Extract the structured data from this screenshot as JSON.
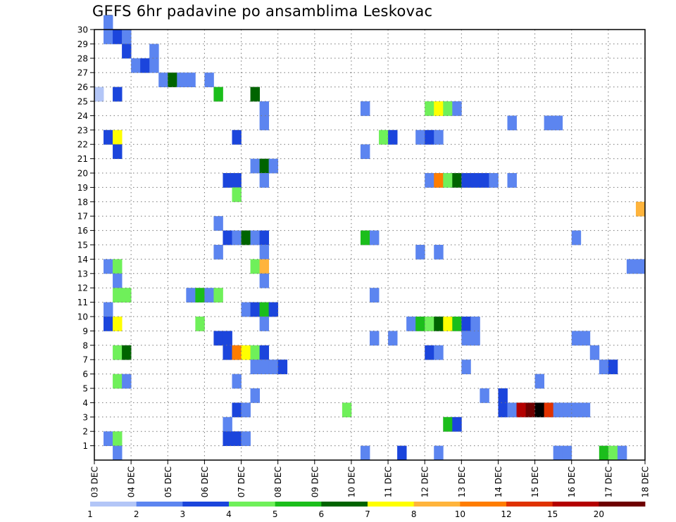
{
  "chart_data": {
    "type": "heatmap",
    "title": "GEFS 6hr padavine po ansamblima Leskovac",
    "x": {
      "tick_labels": [
        "03 DEC",
        "04 DEC",
        "05 DEC",
        "06 DEC",
        "07 DEC",
        "08 DEC",
        "09 DEC",
        "10 DEC",
        "11 DEC",
        "12 DEC",
        "13 DEC",
        "14 DEC",
        "15 DEC",
        "16 DEC",
        "17 DEC",
        "18 DEC"
      ],
      "steps_per_day": 4,
      "range_steps": [
        0,
        60
      ]
    },
    "y": {
      "tick_labels": [
        "1",
        "2",
        "3",
        "4",
        "5",
        "6",
        "7",
        "8",
        "9",
        "10",
        "11",
        "12",
        "13",
        "14",
        "15",
        "16",
        "17",
        "18",
        "19",
        "20",
        "21",
        "22",
        "23",
        "24",
        "25",
        "26",
        "27",
        "28",
        "29",
        "30"
      ],
      "range": [
        0,
        30
      ]
    },
    "grid": true,
    "legend": {
      "placement": "bottom",
      "levels": [
        1,
        2,
        3,
        4,
        5,
        6,
        7,
        8,
        10,
        12,
        15,
        20
      ],
      "colors": [
        "#b3c6f7",
        "#5c85f0",
        "#1b45dc",
        "#6ff05a",
        "#1bbe1b",
        "#006400",
        "#ffff00",
        "#ffb43c",
        "#ff7d00",
        "#e03200",
        "#b40000",
        "#6e0000"
      ]
    },
    "cells": [
      [
        1,
        29,
        1
      ],
      [
        1,
        30,
        1
      ],
      [
        2,
        29,
        2
      ],
      [
        3,
        29,
        1
      ],
      [
        3,
        28,
        2
      ],
      [
        4,
        27,
        1
      ],
      [
        5,
        27,
        2
      ],
      [
        6,
        27,
        1
      ],
      [
        6,
        28,
        1
      ],
      [
        7,
        26,
        1
      ],
      [
        8,
        26,
        5
      ],
      [
        9,
        26,
        1
      ],
      [
        10,
        26,
        1
      ],
      [
        12,
        26,
        1
      ],
      [
        0,
        25,
        0
      ],
      [
        2,
        25,
        2
      ],
      [
        13,
        25,
        4
      ],
      [
        17,
        25,
        5
      ],
      [
        18,
        24,
        1
      ],
      [
        29,
        24,
        1
      ],
      [
        36,
        24,
        3
      ],
      [
        37,
        24,
        6
      ],
      [
        38,
        24,
        3
      ],
      [
        39,
        24,
        1
      ],
      [
        18,
        23,
        1
      ],
      [
        45,
        23,
        1
      ],
      [
        49,
        23,
        1
      ],
      [
        50,
        23,
        1
      ],
      [
        1,
        22,
        2
      ],
      [
        2,
        22,
        6
      ],
      [
        15,
        22,
        2
      ],
      [
        31,
        22,
        3
      ],
      [
        32,
        22,
        2
      ],
      [
        35,
        22,
        1
      ],
      [
        36,
        22,
        2
      ],
      [
        37,
        22,
        1
      ],
      [
        2,
        21,
        2
      ],
      [
        29,
        21,
        1
      ],
      [
        17,
        20,
        1
      ],
      [
        18,
        20,
        5
      ],
      [
        19,
        20,
        1
      ],
      [
        14,
        19,
        2
      ],
      [
        15,
        19,
        2
      ],
      [
        18,
        19,
        1
      ],
      [
        36,
        19,
        1
      ],
      [
        37,
        19,
        8
      ],
      [
        38,
        19,
        3
      ],
      [
        39,
        19,
        5
      ],
      [
        40,
        19,
        2
      ],
      [
        41,
        19,
        2
      ],
      [
        42,
        19,
        2
      ],
      [
        43,
        19,
        1
      ],
      [
        45,
        19,
        1
      ],
      [
        15,
        18,
        3
      ],
      [
        59,
        17,
        7
      ],
      [
        13,
        16,
        1
      ],
      [
        14,
        15,
        2
      ],
      [
        15,
        15,
        1
      ],
      [
        16,
        15,
        5
      ],
      [
        17,
        15,
        1
      ],
      [
        18,
        15,
        2
      ],
      [
        29,
        15,
        4
      ],
      [
        30,
        15,
        1
      ],
      [
        52,
        15,
        1
      ],
      [
        13,
        14,
        1
      ],
      [
        18,
        14,
        1
      ],
      [
        35,
        14,
        1
      ],
      [
        37,
        14,
        1
      ],
      [
        1,
        13,
        1
      ],
      [
        2,
        13,
        3
      ],
      [
        17,
        13,
        3
      ],
      [
        18,
        13,
        7
      ],
      [
        58,
        13,
        1
      ],
      [
        59,
        13,
        1
      ],
      [
        2,
        12,
        1
      ],
      [
        18,
        12,
        1
      ],
      [
        2,
        11,
        3
      ],
      [
        3,
        11,
        3
      ],
      [
        10,
        11,
        1
      ],
      [
        11,
        11,
        4
      ],
      [
        12,
        11,
        1
      ],
      [
        13,
        11,
        3
      ],
      [
        30,
        11,
        1
      ],
      [
        1,
        10,
        1
      ],
      [
        16,
        10,
        1
      ],
      [
        17,
        10,
        2
      ],
      [
        18,
        10,
        4
      ],
      [
        19,
        10,
        2
      ],
      [
        1,
        9,
        2
      ],
      [
        2,
        9,
        6
      ],
      [
        11,
        9,
        3
      ],
      [
        18,
        9,
        1
      ],
      [
        34,
        9,
        1
      ],
      [
        35,
        9,
        4
      ],
      [
        36,
        9,
        3
      ],
      [
        37,
        9,
        5
      ],
      [
        38,
        9,
        6
      ],
      [
        39,
        9,
        4
      ],
      [
        40,
        9,
        2
      ],
      [
        41,
        9,
        1
      ],
      [
        13,
        8,
        2
      ],
      [
        14,
        8,
        2
      ],
      [
        30,
        8,
        1
      ],
      [
        32,
        8,
        1
      ],
      [
        40,
        8,
        1
      ],
      [
        41,
        8,
        1
      ],
      [
        52,
        8,
        1
      ],
      [
        53,
        8,
        1
      ],
      [
        2,
        7,
        3
      ],
      [
        3,
        7,
        5
      ],
      [
        14,
        7,
        2
      ],
      [
        15,
        7,
        8
      ],
      [
        16,
        7,
        6
      ],
      [
        17,
        7,
        3
      ],
      [
        18,
        7,
        2
      ],
      [
        36,
        7,
        2
      ],
      [
        37,
        7,
        1
      ],
      [
        54,
        7,
        1
      ],
      [
        17,
        6,
        1
      ],
      [
        18,
        6,
        1
      ],
      [
        19,
        6,
        1
      ],
      [
        20,
        6,
        2
      ],
      [
        40,
        6,
        1
      ],
      [
        55,
        6,
        1
      ],
      [
        56,
        6,
        2
      ],
      [
        2,
        5,
        3
      ],
      [
        3,
        5,
        1
      ],
      [
        15,
        5,
        1
      ],
      [
        48,
        5,
        1
      ],
      [
        17,
        4,
        1
      ],
      [
        42,
        4,
        1
      ],
      [
        44,
        4,
        2
      ],
      [
        15,
        3,
        2
      ],
      [
        16,
        3,
        1
      ],
      [
        27,
        3,
        3
      ],
      [
        44,
        3,
        2
      ],
      [
        45,
        3,
        1
      ],
      [
        46,
        3,
        10
      ],
      [
        47,
        3,
        11
      ],
      [
        48,
        3,
        12
      ],
      [
        49,
        3,
        9
      ],
      [
        50,
        3,
        1
      ],
      [
        51,
        3,
        1
      ],
      [
        52,
        3,
        1
      ],
      [
        53,
        3,
        1
      ],
      [
        14,
        2,
        1
      ],
      [
        38,
        2,
        4
      ],
      [
        39,
        2,
        2
      ],
      [
        1,
        1,
        1
      ],
      [
        2,
        1,
        3
      ],
      [
        14,
        1,
        2
      ],
      [
        15,
        1,
        2
      ],
      [
        16,
        1,
        1
      ],
      [
        2,
        0,
        1
      ],
      [
        29,
        0,
        1
      ],
      [
        33,
        0,
        2
      ],
      [
        37,
        0,
        1
      ],
      [
        50,
        0,
        1
      ],
      [
        51,
        0,
        1
      ],
      [
        55,
        0,
        4
      ],
      [
        56,
        0,
        3
      ],
      [
        57,
        0,
        1
      ]
    ]
  }
}
